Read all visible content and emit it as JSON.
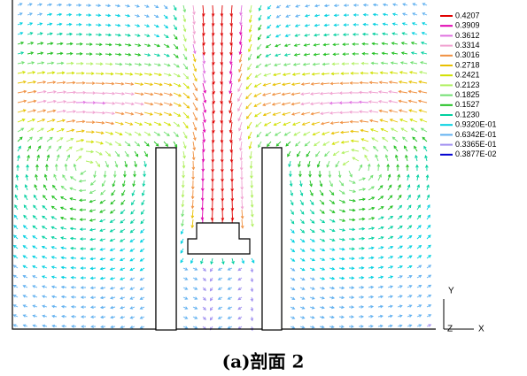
{
  "caption": "(a)剖面 2",
  "legend": {
    "entries": [
      {
        "label": "0.4207",
        "color": "#e00000"
      },
      {
        "label": "0.3909",
        "color": "#e000b0"
      },
      {
        "label": "0.3612",
        "color": "#e070e0"
      },
      {
        "label": "0.3314",
        "color": "#f0a0d0"
      },
      {
        "label": "0.3016",
        "color": "#f09040"
      },
      {
        "label": "0.2718",
        "color": "#e8c000"
      },
      {
        "label": "0.2421",
        "color": "#d0e000"
      },
      {
        "label": "0.2123",
        "color": "#b0f060"
      },
      {
        "label": "0.1825",
        "color": "#70e070"
      },
      {
        "label": "0.1527",
        "color": "#20c020"
      },
      {
        "label": "0.1230",
        "color": "#00d0a0"
      },
      {
        "label": "0.9320E-01",
        "color": "#00d0e0"
      },
      {
        "label": "0.6342E-01",
        "color": "#60b0f0"
      },
      {
        "label": "0.3365E-01",
        "color": "#a090f0"
      },
      {
        "label": "0.3877E-02",
        "color": "#0000d0"
      }
    ]
  },
  "axes": {
    "y": "Y",
    "z": "Z",
    "x": "X"
  }
}
